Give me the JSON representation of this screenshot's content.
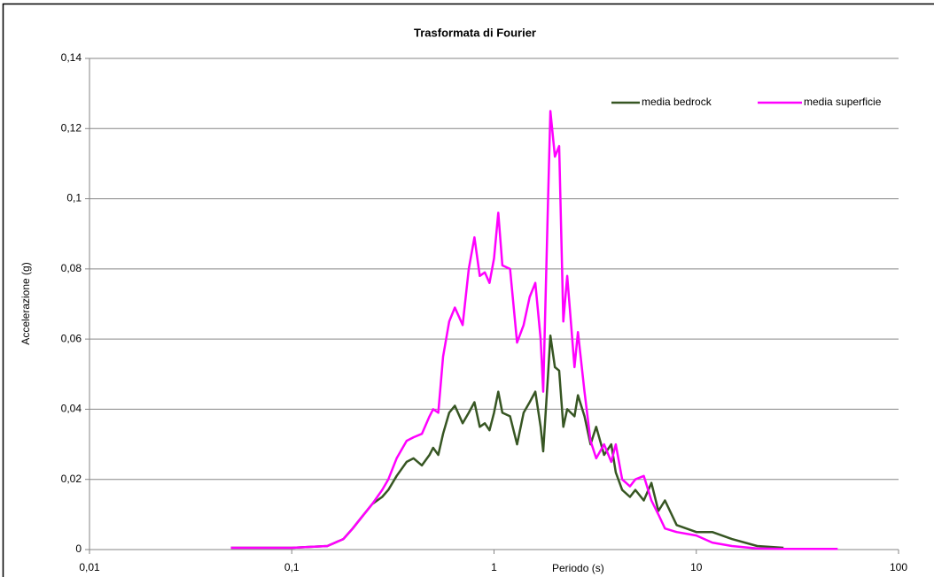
{
  "chart_data": {
    "type": "line",
    "title": "Trasformata di Fourier",
    "x_label": "Periodo (s)",
    "y_label": "Accelerazione (g)",
    "x_log": true,
    "grid": true,
    "legend": "top-right",
    "xlim": [
      0.01,
      100
    ],
    "xticks": [
      {
        "value": 0.01,
        "label": "0,01"
      },
      {
        "value": 0.1,
        "label": "0,1"
      },
      1,
      10,
      100
    ],
    "ylim": [
      0,
      0.14
    ],
    "yticks": [
      0,
      {
        "value": 0.02,
        "label": "0,02"
      },
      {
        "value": 0.04,
        "label": "0,04"
      },
      {
        "value": 0.06,
        "label": "0,06"
      },
      {
        "value": 0.08,
        "label": "0,08"
      },
      {
        "value": 0.1,
        "label": "0,1"
      },
      {
        "value": 0.12,
        "label": "0,12"
      },
      {
        "value": 0.14,
        "label": "0,14"
      }
    ],
    "x": [
      0.05,
      0.1,
      0.15,
      0.18,
      0.2,
      0.22,
      0.25,
      0.28,
      0.3,
      0.33,
      0.37,
      0.4,
      0.44,
      0.48,
      0.5,
      0.53,
      0.56,
      0.6,
      0.64,
      0.7,
      0.75,
      0.8,
      0.85,
      0.9,
      0.95,
      1.0,
      1.05,
      1.1,
      1.2,
      1.3,
      1.4,
      1.5,
      1.6,
      1.7,
      1.75,
      1.85,
      1.9,
      2.0,
      2.1,
      2.2,
      2.3,
      2.5,
      2.6,
      2.8,
      3.0,
      3.2,
      3.5,
      3.8,
      4.0,
      4.3,
      4.7,
      5.0,
      5.5,
      6.0,
      6.5,
      7.0,
      8.0,
      10,
      12,
      15,
      20,
      27,
      50
    ],
    "series": [
      {
        "name": "media bedrock",
        "color": "#375623",
        "values": [
          0.0005,
          0.0005,
          0.001,
          0.003,
          0.006,
          0.009,
          0.013,
          0.015,
          0.017,
          0.021,
          0.025,
          0.026,
          0.024,
          0.027,
          0.029,
          0.027,
          0.033,
          0.039,
          0.041,
          0.036,
          0.039,
          0.042,
          0.035,
          0.036,
          0.034,
          0.039,
          0.045,
          0.039,
          0.038,
          0.03,
          0.039,
          0.042,
          0.045,
          0.035,
          0.028,
          0.05,
          0.061,
          0.052,
          0.051,
          0.035,
          0.04,
          0.038,
          0.044,
          0.038,
          0.03,
          0.035,
          0.027,
          0.03,
          0.022,
          0.017,
          0.015,
          0.017,
          0.014,
          0.019,
          0.011,
          0.014,
          0.007,
          0.005,
          0.005,
          0.003,
          0.001,
          0.0005,
          null
        ]
      },
      {
        "name": "media superficie",
        "color": "#ff00ff",
        "values": [
          0.0005,
          0.0005,
          0.001,
          0.003,
          0.006,
          0.009,
          0.013,
          0.017,
          0.02,
          0.026,
          0.031,
          0.032,
          0.033,
          0.038,
          0.04,
          0.039,
          0.055,
          0.065,
          0.069,
          0.064,
          0.08,
          0.089,
          0.078,
          0.079,
          0.076,
          0.083,
          0.096,
          0.081,
          0.08,
          0.059,
          0.064,
          0.072,
          0.076,
          0.06,
          0.045,
          0.1,
          0.125,
          0.112,
          0.115,
          0.065,
          0.078,
          0.052,
          0.062,
          0.045,
          0.031,
          0.026,
          0.03,
          0.025,
          0.03,
          0.02,
          0.018,
          0.02,
          0.021,
          0.014,
          0.01,
          0.006,
          0.005,
          0.004,
          0.002,
          0.001,
          0.0003,
          0.0002,
          0.0002
        ]
      }
    ]
  }
}
